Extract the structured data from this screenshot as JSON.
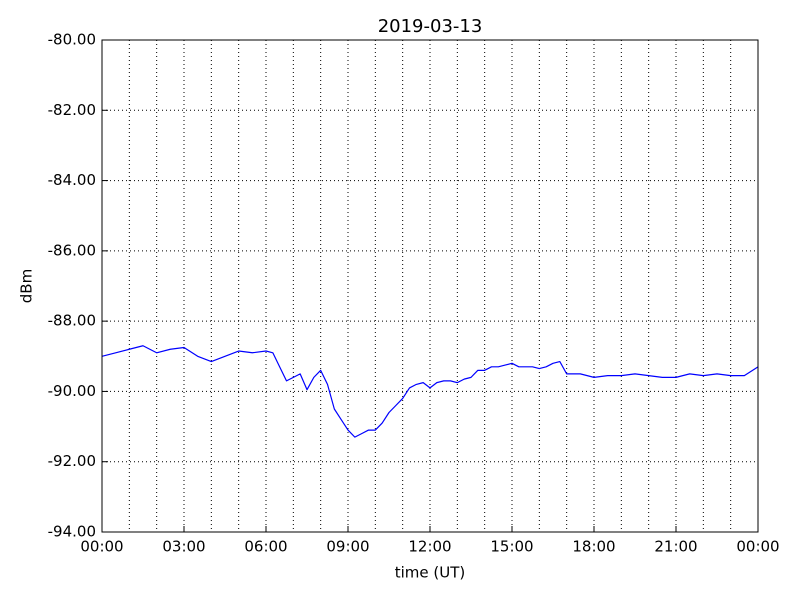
{
  "chart_data": {
    "type": "line",
    "title": "2019-03-13",
    "xlabel": "time (UT)",
    "ylabel": "dBm",
    "x": [
      0,
      0.5,
      1,
      1.5,
      2,
      2.5,
      3,
      3.5,
      4,
      4.5,
      5,
      5.5,
      6,
      6.25,
      6.5,
      6.75,
      7,
      7.25,
      7.5,
      7.75,
      8,
      8.25,
      8.5,
      8.75,
      9,
      9.25,
      9.5,
      9.75,
      10,
      10.25,
      10.5,
      10.75,
      11,
      11.25,
      11.5,
      11.75,
      12,
      12.25,
      12.5,
      12.75,
      13,
      13.25,
      13.5,
      13.75,
      14,
      14.25,
      14.5,
      14.75,
      15,
      15.25,
      15.5,
      15.75,
      16,
      16.25,
      16.5,
      16.75,
      17,
      17.25,
      17.5,
      17.75,
      18,
      18.5,
      19,
      19.5,
      20,
      20.5,
      21,
      21.5,
      22,
      22.5,
      23,
      23.5,
      24
    ],
    "values": [
      -89.0,
      -88.9,
      -88.8,
      -88.7,
      -88.9,
      -88.8,
      -88.75,
      -89.0,
      -89.15,
      -89.0,
      -88.85,
      -88.9,
      -88.85,
      -88.9,
      -89.3,
      -89.7,
      -89.6,
      -89.5,
      -89.95,
      -89.6,
      -89.4,
      -89.8,
      -90.5,
      -90.8,
      -91.1,
      -91.3,
      -91.2,
      -91.1,
      -91.1,
      -90.9,
      -90.6,
      -90.4,
      -90.2,
      -89.9,
      -89.8,
      -89.75,
      -89.9,
      -89.75,
      -89.7,
      -89.7,
      -89.75,
      -89.65,
      -89.6,
      -89.4,
      -89.4,
      -89.3,
      -89.3,
      -89.25,
      -89.2,
      -89.3,
      -89.3,
      -89.3,
      -89.35,
      -89.3,
      -89.2,
      -89.15,
      -89.5,
      -89.5,
      -89.5,
      -89.55,
      -89.6,
      -89.55,
      -89.55,
      -89.5,
      -89.55,
      -89.6,
      -89.6,
      -89.5,
      -89.55,
      -89.5,
      -89.55,
      -89.55,
      -89.3
    ],
    "color": "#0000ff",
    "xlim": [
      0,
      24
    ],
    "xticks": [
      {
        "value": 0,
        "label": "00:00"
      },
      {
        "value": 3,
        "label": "03:00"
      },
      {
        "value": 6,
        "label": "06:00"
      },
      {
        "value": 9,
        "label": "09:00"
      },
      {
        "value": 12,
        "label": "12:00"
      },
      {
        "value": 15,
        "label": "15:00"
      },
      {
        "value": 18,
        "label": "18:00"
      },
      {
        "value": 21,
        "label": "21:00"
      },
      {
        "value": 24,
        "label": "00:00"
      }
    ],
    "xminor": [
      1,
      2,
      4,
      5,
      7,
      8,
      10,
      11,
      13,
      14,
      16,
      17,
      19,
      20,
      22,
      23
    ],
    "ylim": [
      -94,
      -80
    ],
    "yticks": [
      {
        "value": -94,
        "label": "-94.00"
      },
      {
        "value": -92,
        "label": "-92.00"
      },
      {
        "value": -90,
        "label": "-90.00"
      },
      {
        "value": -88,
        "label": "-88.00"
      },
      {
        "value": -86,
        "label": "-86.00"
      },
      {
        "value": -84,
        "label": "-84.00"
      },
      {
        "value": -82,
        "label": "-82.00"
      },
      {
        "value": -80,
        "label": "-80.00"
      }
    ],
    "grid": true
  }
}
